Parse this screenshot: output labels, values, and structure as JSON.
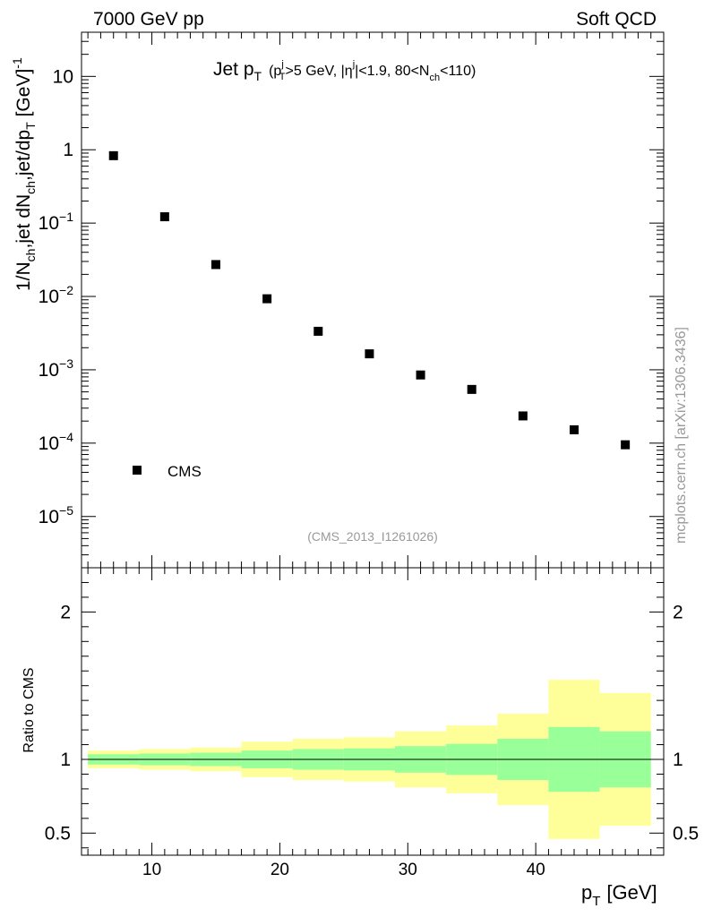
{
  "header": {
    "left": "7000 GeV pp",
    "right": "Soft QCD"
  },
  "watermark": "mcplots.cern.ch [arXiv:1306.3436]",
  "analysis_id": "(CMS_2013_I1261026)",
  "plot_title": {
    "main": "Jet p",
    "main_sub": "T",
    "cond_open": "(p",
    "cond_sup_j": "j",
    "cond_sub_T": "T",
    "cond_mid": ">5 GeV, |η",
    "cond_sup_j2": "j",
    "cond_mid2": "|<1.9, 80<N",
    "cond_sub_ch": "ch",
    "cond_end": "<110)"
  },
  "y_label": {
    "text1": "1/N",
    "sub1": "ch",
    "text2": ",jet dN",
    "sub2": "ch",
    "text3": ",jet/dp",
    "sub3": "T",
    "text4": " [GeV]",
    "sup": "-1"
  },
  "x_label": {
    "text": "p",
    "sub": "T",
    "unit": "[GeV]"
  },
  "ratio_label": "Ratio to CMS",
  "colors": {
    "data": "#000000",
    "band_inner": "#99ff99",
    "band_outer": "#ffff99",
    "text_gray": "#999999"
  },
  "chart_data": {
    "type": "scatter",
    "title": "Jet pT (pT^j>5 GeV, |eta^j|<1.9, 80<Nch<110)",
    "xlabel": "pT [GeV]",
    "ylabel": "1/Nch,jet dNch,jet/dpT [GeV]^-1",
    "xlim": [
      4.5,
      50
    ],
    "main": {
      "yscale": "log",
      "ylim": [
        2e-06,
        40
      ],
      "yticks": [
        {
          "value": 1e-05,
          "base": "10",
          "exp": "−5"
        },
        {
          "value": 0.0001,
          "base": "10",
          "exp": "−4"
        },
        {
          "value": 0.001,
          "base": "10",
          "exp": "−3"
        },
        {
          "value": 0.01,
          "base": "10",
          "exp": "−2"
        },
        {
          "value": 0.1,
          "base": "10",
          "exp": "−1"
        },
        {
          "value": 1,
          "base": "1",
          "exp": ""
        },
        {
          "value": 10,
          "base": "10",
          "exp": ""
        }
      ],
      "series": [
        {
          "name": "CMS",
          "x": [
            7,
            11,
            15,
            19,
            23,
            27,
            31,
            35,
            39,
            43,
            47
          ],
          "values": [
            0.83,
            0.122,
            0.0272,
            0.0093,
            0.00335,
            0.00165,
            0.00085,
            0.00054,
            0.000235,
            0.000152,
            9.5e-05
          ]
        }
      ],
      "legend": {
        "entry": "CMS",
        "position": "bottom-left"
      }
    },
    "ratio": {
      "ylabel": "Ratio to CMS",
      "ylim": [
        0.35,
        2.3
      ],
      "yticks": [
        {
          "value": 0.5,
          "label": "0.5"
        },
        {
          "value": 1,
          "label": "1"
        },
        {
          "value": 2,
          "label": "2"
        }
      ],
      "reference_line": 1,
      "bins": [
        {
          "lo": 5,
          "hi": 9,
          "inner_lo": 0.965,
          "inner_hi": 1.035,
          "outer_lo": 0.94,
          "outer_hi": 1.06
        },
        {
          "lo": 9,
          "hi": 13,
          "inner_lo": 0.96,
          "inner_hi": 1.04,
          "outer_lo": 0.93,
          "outer_hi": 1.07
        },
        {
          "lo": 13,
          "hi": 17,
          "inner_lo": 0.955,
          "inner_hi": 1.045,
          "outer_lo": 0.92,
          "outer_hi": 1.08
        },
        {
          "lo": 17,
          "hi": 21,
          "inner_lo": 0.94,
          "inner_hi": 1.06,
          "outer_lo": 0.88,
          "outer_hi": 1.12
        },
        {
          "lo": 21,
          "hi": 25,
          "inner_lo": 0.93,
          "inner_hi": 1.07,
          "outer_lo": 0.86,
          "outer_hi": 1.14
        },
        {
          "lo": 25,
          "hi": 29,
          "inner_lo": 0.925,
          "inner_hi": 1.075,
          "outer_lo": 0.85,
          "outer_hi": 1.15
        },
        {
          "lo": 29,
          "hi": 33,
          "inner_lo": 0.91,
          "inner_hi": 1.09,
          "outer_lo": 0.81,
          "outer_hi": 1.19
        },
        {
          "lo": 33,
          "hi": 37,
          "inner_lo": 0.895,
          "inner_hi": 1.105,
          "outer_lo": 0.77,
          "outer_hi": 1.23
        },
        {
          "lo": 37,
          "hi": 41,
          "inner_lo": 0.86,
          "inner_hi": 1.14,
          "outer_lo": 0.69,
          "outer_hi": 1.31
        },
        {
          "lo": 41,
          "hi": 45,
          "inner_lo": 0.78,
          "inner_hi": 1.22,
          "outer_lo": 0.46,
          "outer_hi": 1.54
        },
        {
          "lo": 45,
          "hi": 49,
          "inner_lo": 0.81,
          "inner_hi": 1.19,
          "outer_lo": 0.55,
          "outer_hi": 1.45
        }
      ]
    },
    "xticks": [
      {
        "value": 10,
        "label": "10"
      },
      {
        "value": 20,
        "label": "20"
      },
      {
        "value": 30,
        "label": "30"
      },
      {
        "value": 40,
        "label": "40"
      }
    ]
  }
}
